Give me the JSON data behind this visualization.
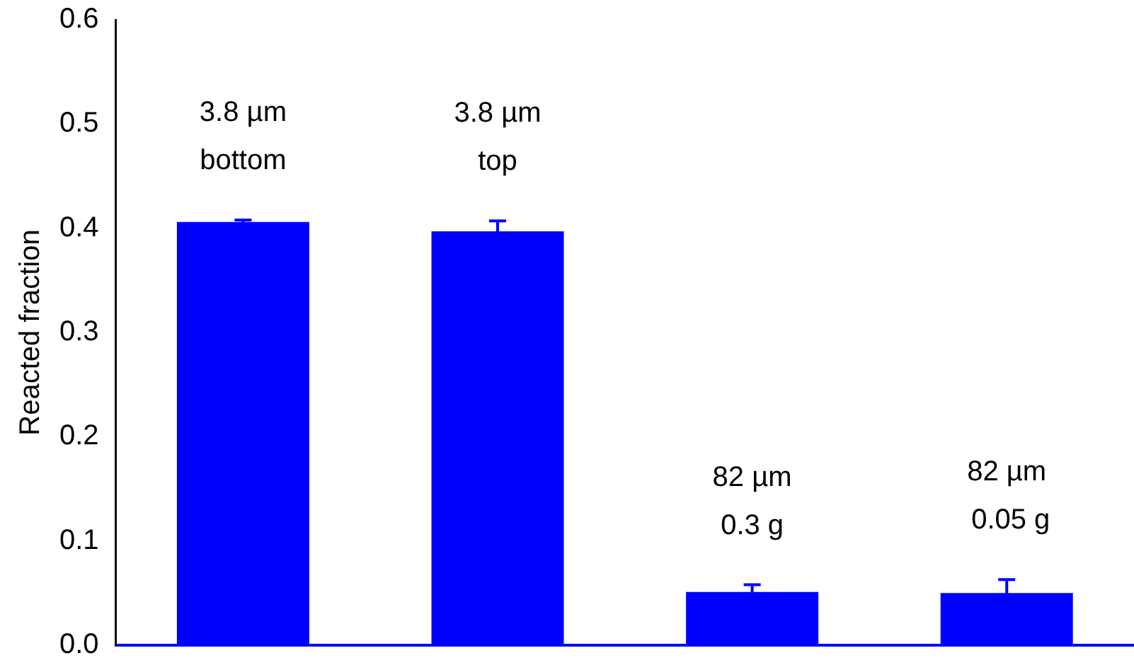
{
  "chart_data": {
    "type": "bar",
    "ylabel": "Reacted fraction",
    "categories": [
      "3.8 µm\nbottom",
      "3.8 µm\ntop",
      "82 µm\n0.3 g",
      "82 µm\n 0.05 g"
    ],
    "values": [
      0.406,
      0.397,
      0.051,
      0.05
    ],
    "errors": [
      0.002,
      0.01,
      0.007,
      0.013
    ],
    "color": "#0000ff",
    "ylim": [
      0,
      0.6
    ],
    "yticks": [
      {
        "value": 0,
        "label": "0.0"
      },
      0.1,
      0.2,
      0.3,
      0.4,
      0.5,
      0.6
    ],
    "grid": false,
    "legend": false
  }
}
